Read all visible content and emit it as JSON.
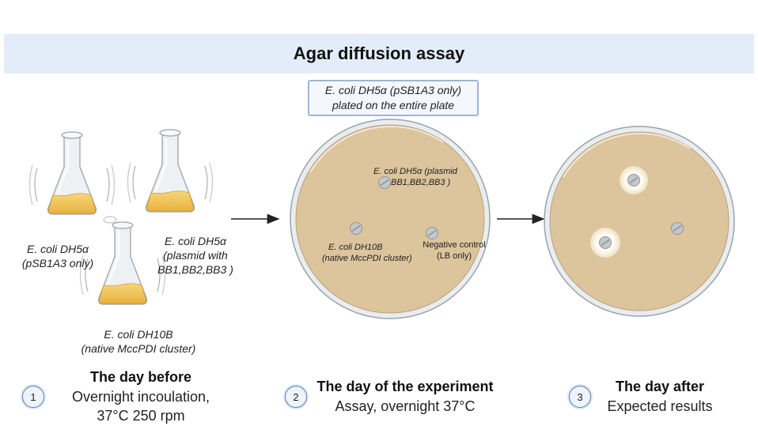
{
  "title": "Agar diffusion assay",
  "callout": {
    "line1": "E. coli DH5α  (pSB1A3 only)",
    "line2": "plated on the entire plate"
  },
  "flasks": {
    "left": {
      "line1": "E. coli DH5α",
      "line2": "(pSB1A3 only)"
    },
    "right": {
      "line1": "E. coli DH5α",
      "line2": "(plasmid with",
      "line3": "BB1,BB2,BB3 )"
    },
    "bottom": {
      "line1": "E. coli DH10B",
      "line2": "(native MccPDI cluster)"
    }
  },
  "plate_labels": {
    "dh5a_plasmid_1": "E. coli DH5α (plasmid",
    "dh5a_plasmid_2": "BB1,BB2,BB3 )",
    "dh10b_1": "E. coli DH10B",
    "dh10b_2": "(native MccPDI cluster)",
    "negative_1": "Negative control",
    "negative_2": "(LB only)"
  },
  "steps": [
    {
      "number": "1",
      "title": "The day before",
      "line1": "Overnight incoulation,",
      "line2": "37°C 250 rpm"
    },
    {
      "number": "2",
      "title": "The day of the experiment",
      "line1": "Assay, overnight 37°C"
    },
    {
      "number": "3",
      "title": "The day after",
      "line1": "Expected results"
    }
  ],
  "colors": {
    "title_band": "#e3edf9",
    "agar": "#dcc49c",
    "broth": "#f2c65a",
    "halo": "#fbf6e8",
    "callout_border": "#9db5d6"
  }
}
